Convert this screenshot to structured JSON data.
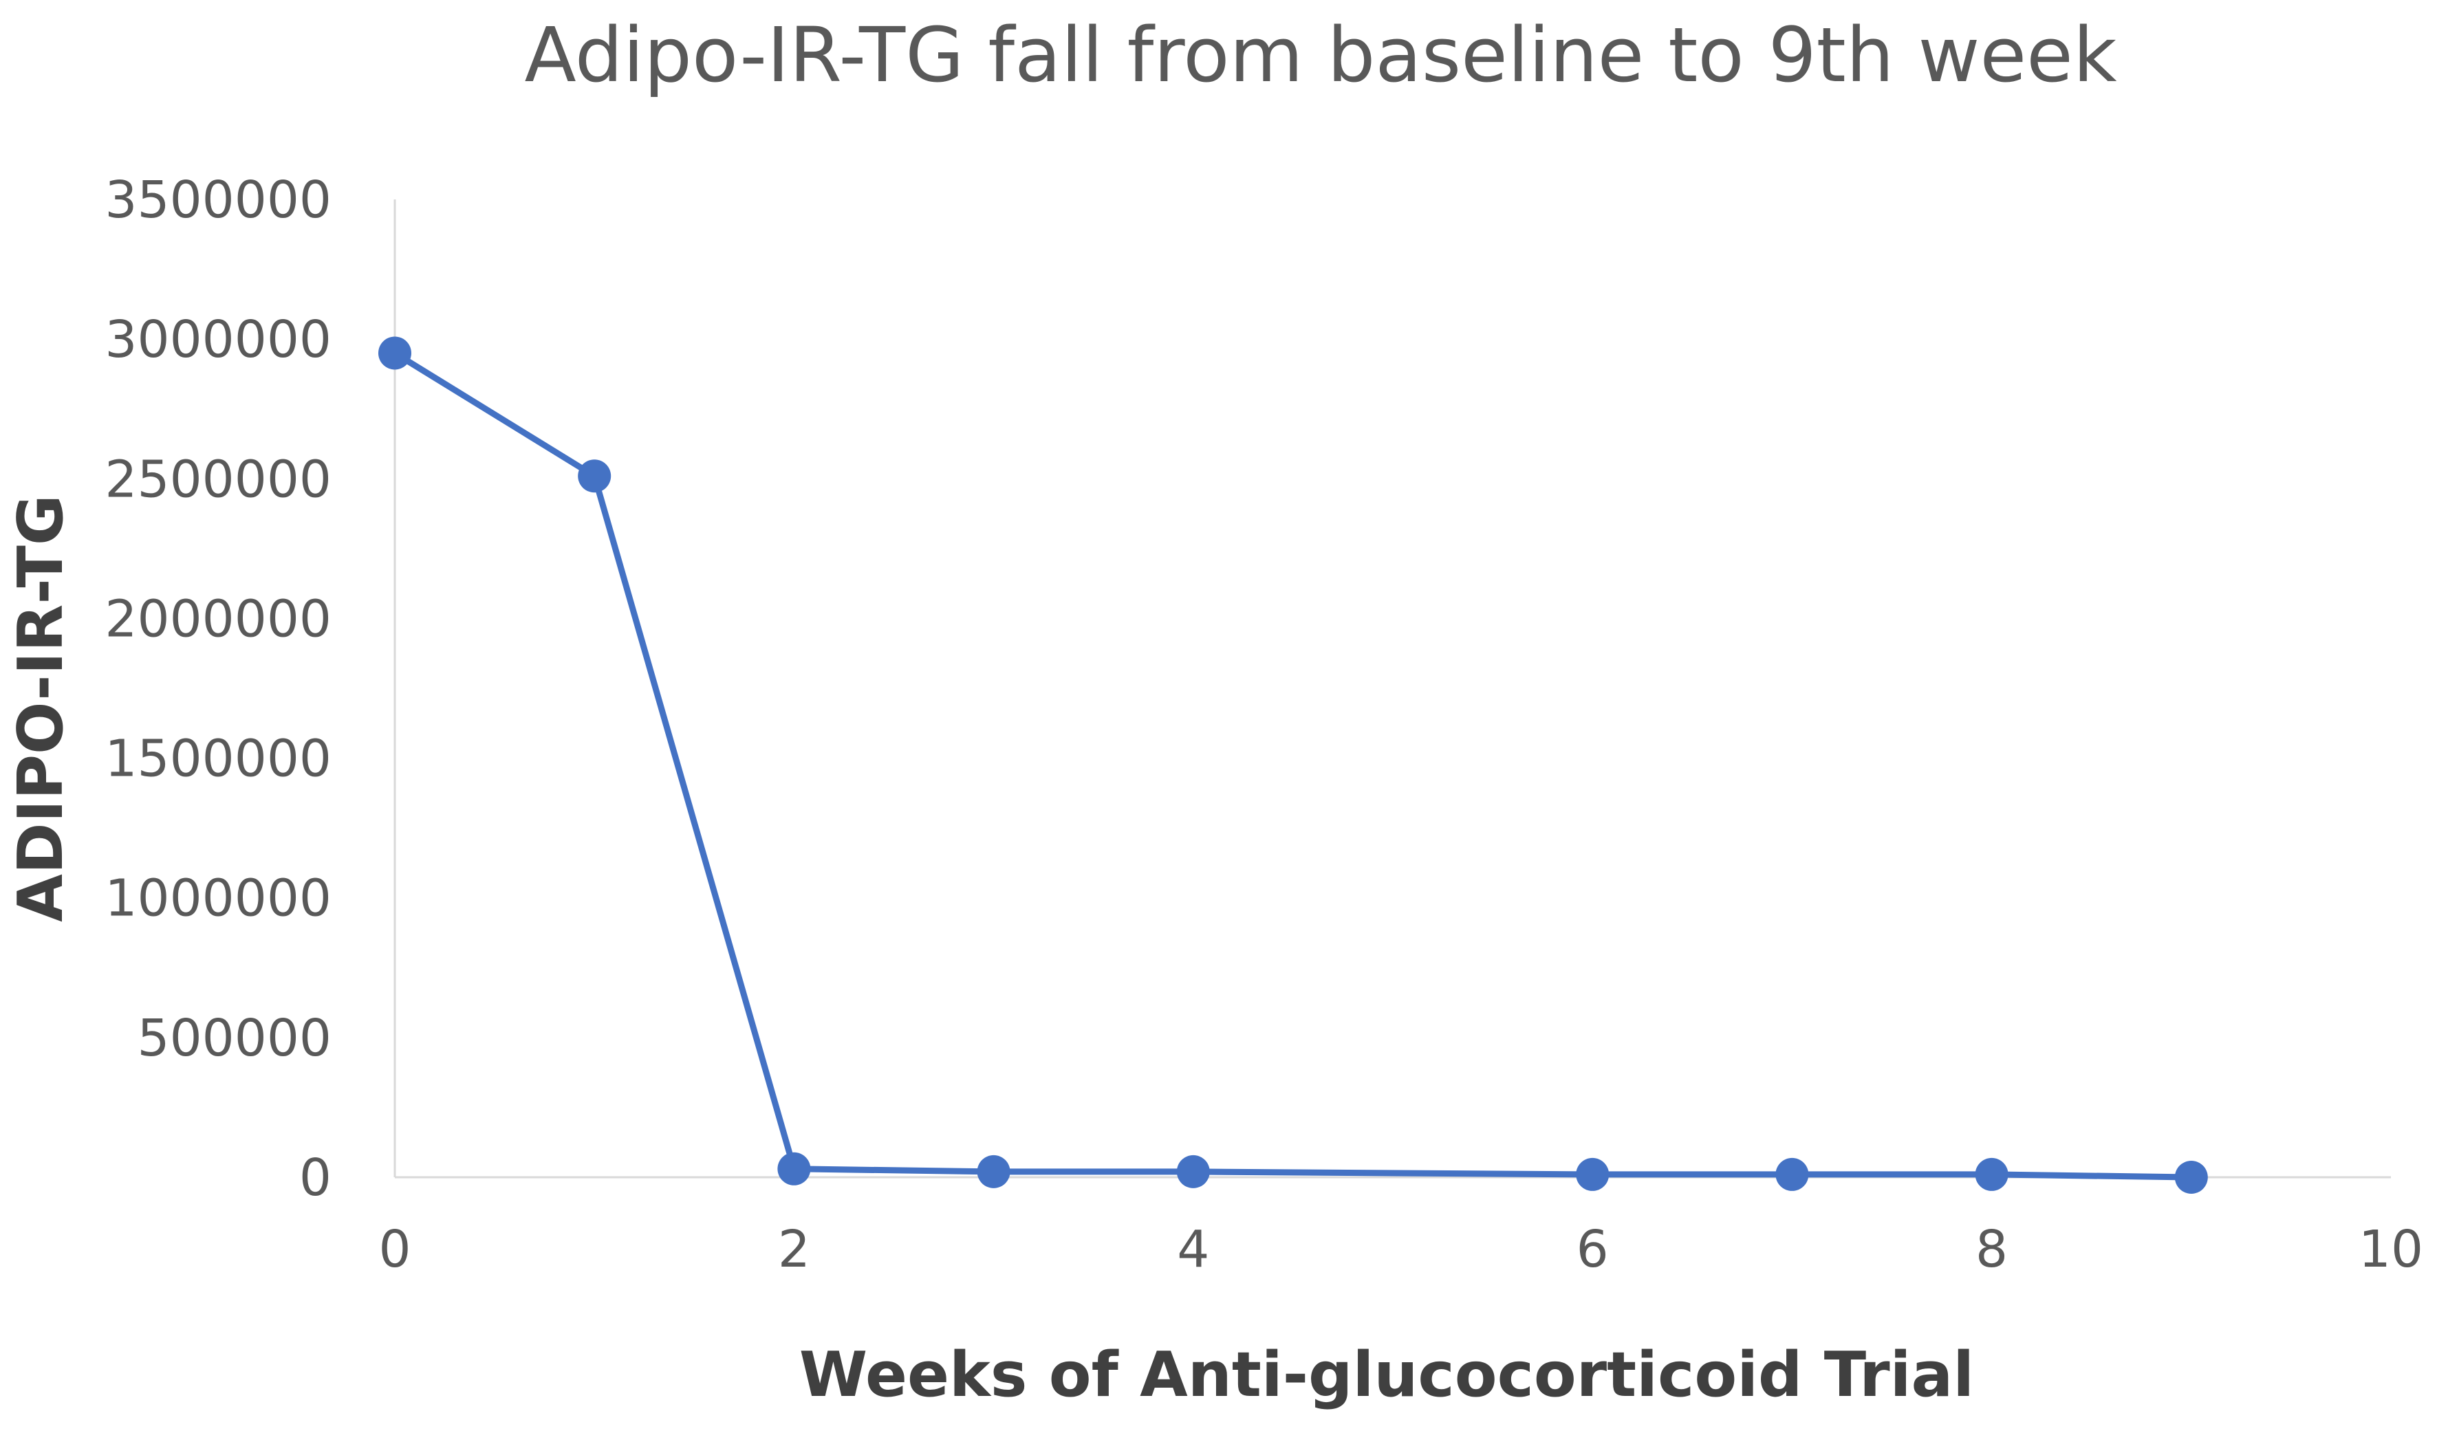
{
  "chart_data": {
    "type": "scatter",
    "mode": "lines+markers",
    "title": "Adipo-IR-TG fall from baseline to 9th week",
    "xlabel": "Weeks of Anti-glucocorticoid Trial",
    "ylabel": "ADIPO-IR-TG",
    "xlim": [
      0,
      10
    ],
    "ylim": [
      0,
      3500000
    ],
    "x_ticks": [
      "0",
      "2",
      "4",
      "6",
      "8",
      "10"
    ],
    "x_tick_values": [
      0,
      2,
      4,
      6,
      8,
      10
    ],
    "y_ticks": [
      "0",
      "500000",
      "1000000",
      "1500000",
      "2000000",
      "2500000",
      "3000000",
      "3500000"
    ],
    "y_tick_values": [
      0,
      500000,
      1000000,
      1500000,
      2000000,
      2500000,
      3000000,
      3500000
    ],
    "grid": false,
    "legend": "none",
    "series": [
      {
        "color": "#4472C4",
        "x": [
          0,
          1,
          2,
          3,
          4,
          6,
          7,
          8,
          9
        ],
        "y": [
          2950000,
          2510000,
          30000,
          20000,
          20000,
          10000,
          10000,
          10000,
          0
        ]
      }
    ]
  }
}
